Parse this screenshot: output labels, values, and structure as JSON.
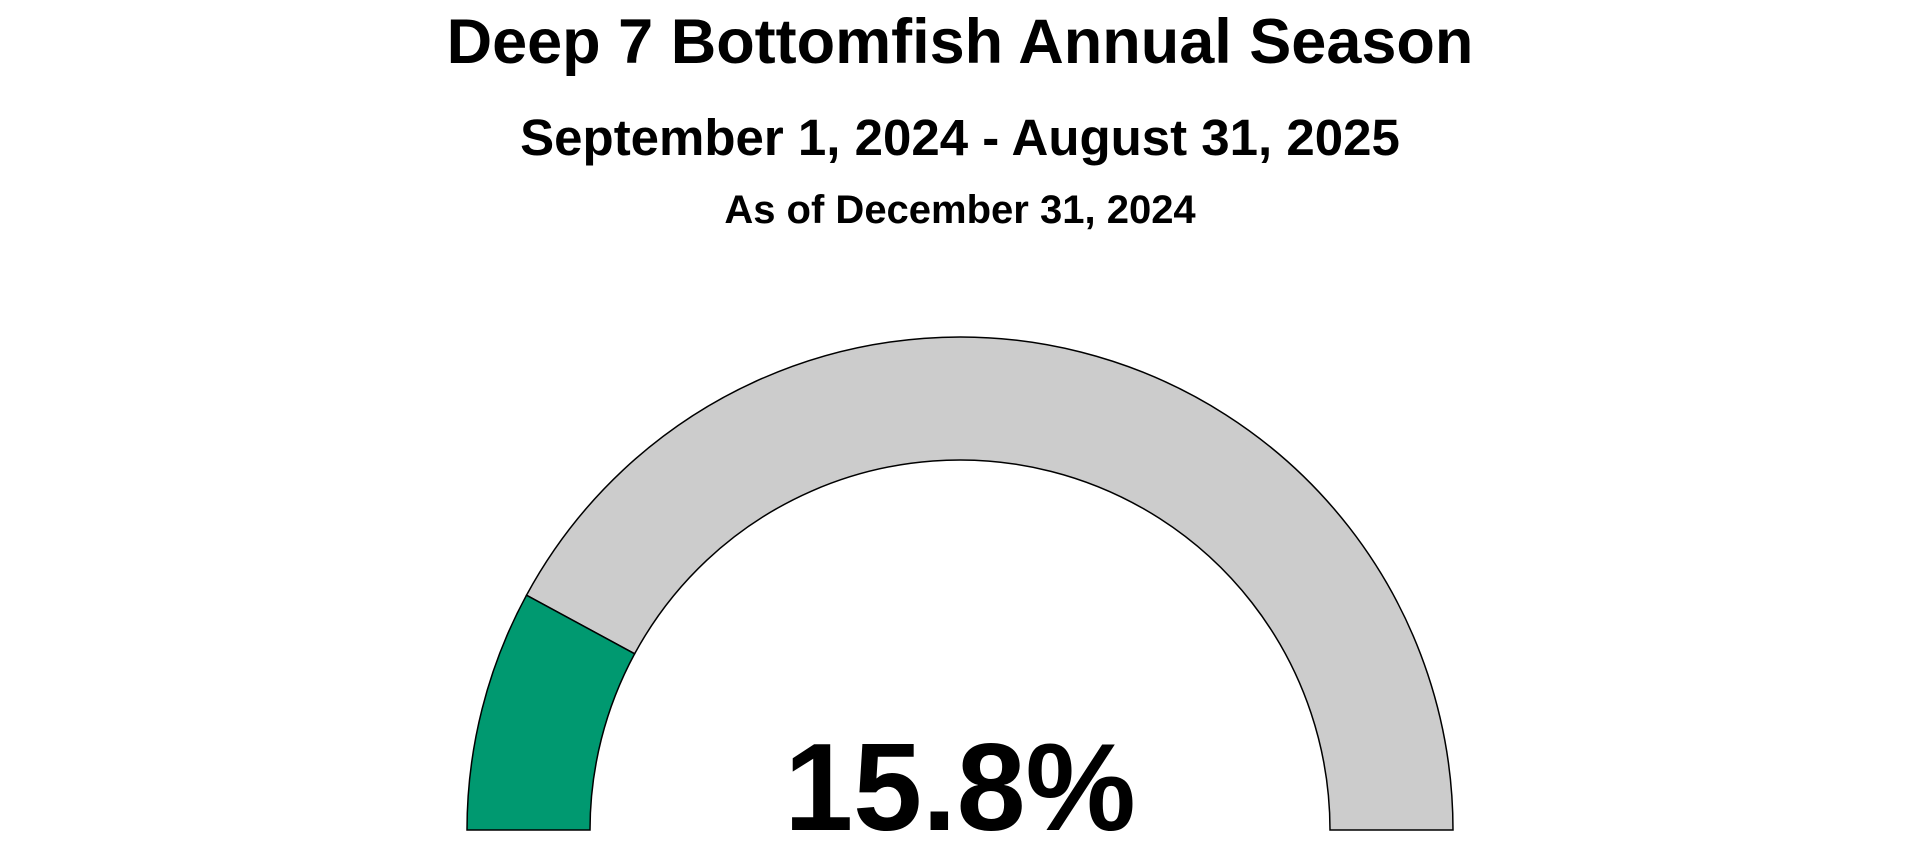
{
  "chart_data": {
    "type": "gauge",
    "title": "Deep 7 Bottomfish Annual Season",
    "subtitle": "September 1, 2024 - August 31, 2025",
    "as_of": "As of December 31, 2024",
    "value": 15.8,
    "value_label": "15.8%",
    "range": [
      0,
      100
    ],
    "fill_color": "#009970",
    "track_color": "#cccccc",
    "outline_color": "#000000"
  }
}
